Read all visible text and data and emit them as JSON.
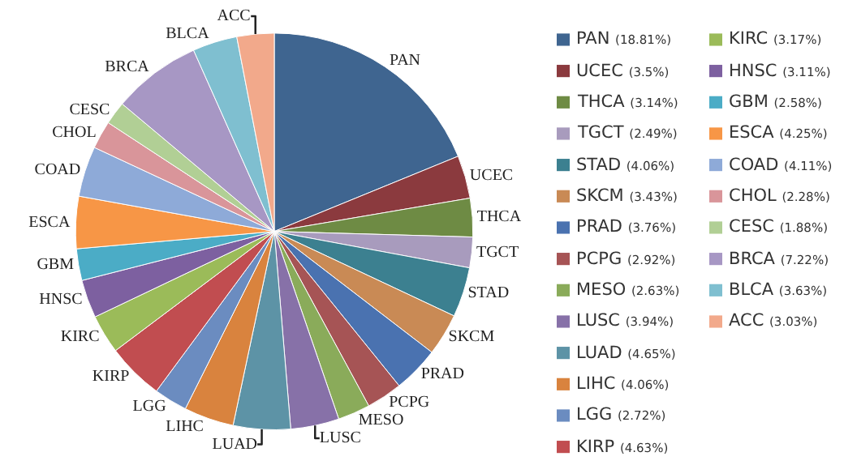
{
  "chart_data": {
    "type": "pie",
    "categories": [
      "PAN",
      "UCEC",
      "THCA",
      "TGCT",
      "STAD",
      "SKCM",
      "PRAD",
      "PCPG",
      "MESO",
      "LUSC",
      "LUAD",
      "LIHC",
      "LGG",
      "KIRP",
      "KIRC",
      "HNSC",
      "GBM",
      "ESCA",
      "COAD",
      "CHOL",
      "CESC",
      "BRCA",
      "BLCA",
      "ACC"
    ],
    "values": [
      18.81,
      3.5,
      3.14,
      2.49,
      4.06,
      3.43,
      3.76,
      2.92,
      2.63,
      3.94,
      4.65,
      4.06,
      2.72,
      4.63,
      3.17,
      3.11,
      2.58,
      4.25,
      4.11,
      2.28,
      1.88,
      7.22,
      3.63,
      3.03
    ],
    "value_labels": [
      "(18.81%)",
      "(3.5%)",
      "(3.14%)",
      "(2.49%)",
      "(4.06%)",
      "(3.43%)",
      "(3.76%)",
      "(2.92%)",
      "(2.63%)",
      "(3.94%)",
      "(4.65%)",
      "(4.06%)",
      "(2.72%)",
      "(4.63%)",
      "(3.17%)",
      "(3.11%)",
      "(2.58%)",
      "(4.25%)",
      "(4.11%)",
      "(2.28%)",
      "(1.88%)",
      "(7.22%)",
      "(3.63%)",
      "(3.03%)"
    ],
    "colors": [
      "#3f6590",
      "#8b3a3e",
      "#6e8b44",
      "#a89bbd",
      "#3c8090",
      "#c98a55",
      "#4a72b0",
      "#a65455",
      "#8aab5a",
      "#8771a8",
      "#5d93a6",
      "#d9833e",
      "#6b8cc0",
      "#c14d50",
      "#9bbb59",
      "#7d60a0",
      "#4bacc6",
      "#f79646",
      "#8eaad8",
      "#d9959a",
      "#b1cf95",
      "#a797c4",
      "#7fbfd0",
      "#f2a98b"
    ],
    "legend": "right"
  }
}
